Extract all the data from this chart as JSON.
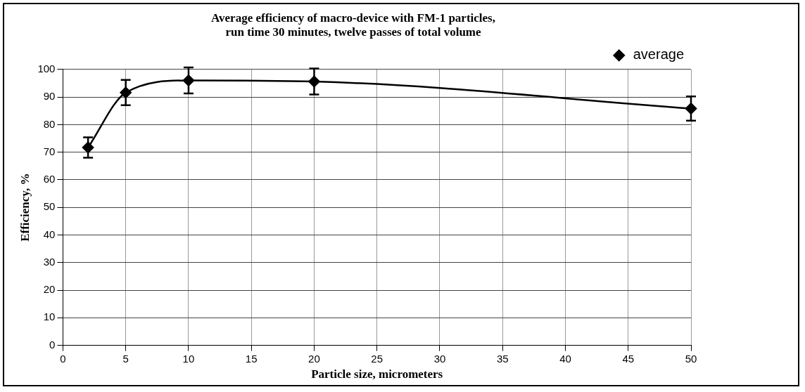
{
  "chart_data": {
    "type": "line",
    "title": "Average efficiency of macro-device with FM-1 particles,\nrun time 30 minutes, twelve passes of total volume",
    "xlabel": "Particle size, micrometers",
    "ylabel": "Efficiency, %",
    "x": [
      2,
      5,
      10,
      20,
      50
    ],
    "series": [
      {
        "name": "average",
        "color": "#000000",
        "values": [
          71.7,
          91.6,
          96.0,
          95.6,
          85.8
        ],
        "errors": [
          3.7,
          4.6,
          4.7,
          4.7,
          4.4
        ]
      }
    ],
    "xlim": [
      0,
      50
    ],
    "xticks": [
      0,
      5,
      10,
      15,
      20,
      25,
      30,
      35,
      40,
      45,
      50
    ],
    "ylim": [
      0,
      100
    ],
    "yticks": [
      0,
      10,
      20,
      30,
      40,
      50,
      60,
      70,
      80,
      90,
      100
    ],
    "grid": true,
    "legend": "top right",
    "marker": "diamond",
    "line_style": "solid"
  }
}
